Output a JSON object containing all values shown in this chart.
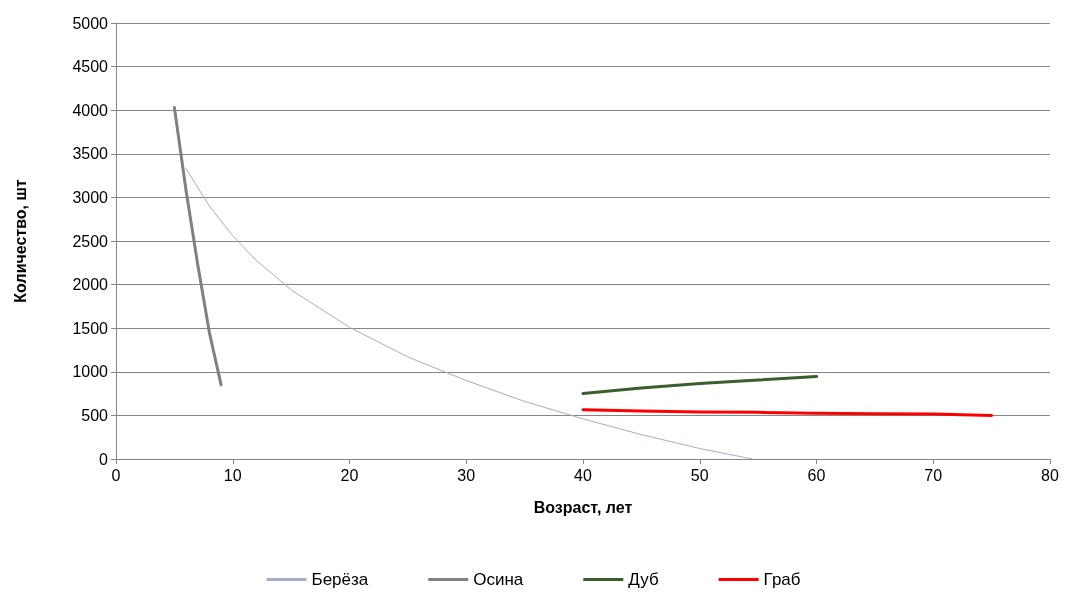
{
  "chart_data": {
    "type": "line",
    "xlabel": "Возраст, лет",
    "ylabel": "Количество, шт",
    "xlim": [
      0,
      80
    ],
    "xticks": [
      0,
      10,
      20,
      30,
      40,
      50,
      60,
      70,
      80
    ],
    "ylim": [
      0,
      5000
    ],
    "yticks": [
      0,
      500,
      1000,
      1500,
      2000,
      2500,
      3000,
      3500,
      4000,
      4500,
      5000
    ],
    "grid": "y",
    "legend": "bottom",
    "marker": "none",
    "line_style": "solid",
    "series": [
      {
        "name": "Берёза",
        "color": "#a3acc9",
        "x": [
          6,
          8,
          10,
          12,
          15,
          20,
          25,
          30,
          35,
          40,
          45,
          50,
          54.5
        ],
        "values": [
          3330,
          2900,
          2560,
          2280,
          1940,
          1510,
          1170,
          900,
          660,
          460,
          280,
          120,
          0
        ]
      },
      {
        "name": "Осина",
        "color": "#808080",
        "x": [
          5,
          6,
          7,
          8,
          9
        ],
        "values": [
          4030,
          3080,
          2230,
          1450,
          850
        ]
      },
      {
        "name": "Дуб",
        "color": "#3a5f2a",
        "x": [
          40,
          45,
          50,
          55,
          60
        ],
        "values": [
          750,
          815,
          865,
          905,
          945
        ]
      },
      {
        "name": "Граб",
        "color": "#ff0000",
        "x": [
          40,
          45,
          50,
          55,
          60,
          65,
          70,
          75
        ],
        "values": [
          565,
          550,
          540,
          535,
          525,
          520,
          515,
          500
        ]
      }
    ]
  }
}
